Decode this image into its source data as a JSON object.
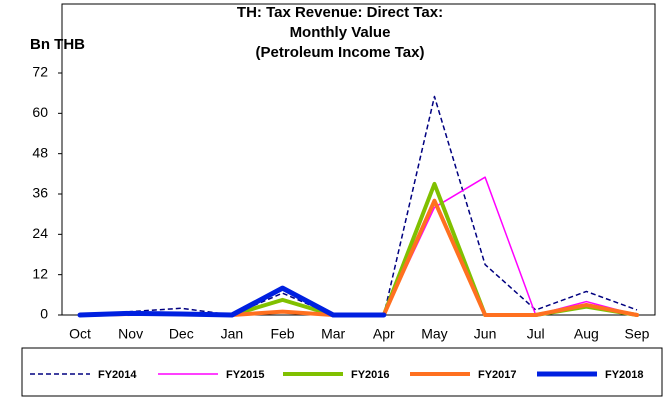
{
  "chart_data": {
    "type": "line",
    "title": [
      "TH: Tax Revenue: Direct Tax:",
      "Monthly Value",
      "(Petroleum Income Tax)"
    ],
    "y_label": "Bn THB",
    "categories": [
      "Oct",
      "Nov",
      "Dec",
      "Jan",
      "Feb",
      "Mar",
      "Apr",
      "May",
      "Jun",
      "Jul",
      "Aug",
      "Sep"
    ],
    "series": [
      {
        "name": "FY2014",
        "color": "#000080",
        "values": [
          0,
          1,
          2,
          0,
          6.5,
          0,
          0,
          65,
          15,
          1.5,
          7,
          1.5
        ]
      },
      {
        "name": "FY2015",
        "color": "#ff00ff",
        "values": [
          0,
          0.5,
          0.5,
          0,
          1,
          0,
          0,
          32,
          41,
          0,
          4,
          0
        ]
      },
      {
        "name": "FY2016",
        "color": "#80c000",
        "values": [
          0,
          0.5,
          0.3,
          0,
          4.5,
          0,
          0,
          39,
          0,
          0,
          2.5,
          0
        ]
      },
      {
        "name": "FY2017",
        "color": "#ff7020",
        "values": [
          0,
          0.3,
          0.3,
          0,
          1,
          0,
          0,
          34,
          0,
          0,
          3,
          0
        ]
      },
      {
        "name": "FY2018",
        "color": "#0020e0",
        "values": [
          0,
          0.5,
          0.3,
          0,
          8,
          0,
          0,
          null,
          null,
          null,
          null,
          null
        ]
      }
    ],
    "ylim": [
      0,
      72
    ],
    "yticks": [
      0,
      12,
      24,
      36,
      48,
      60,
      72
    ],
    "legend": "bottom"
  }
}
